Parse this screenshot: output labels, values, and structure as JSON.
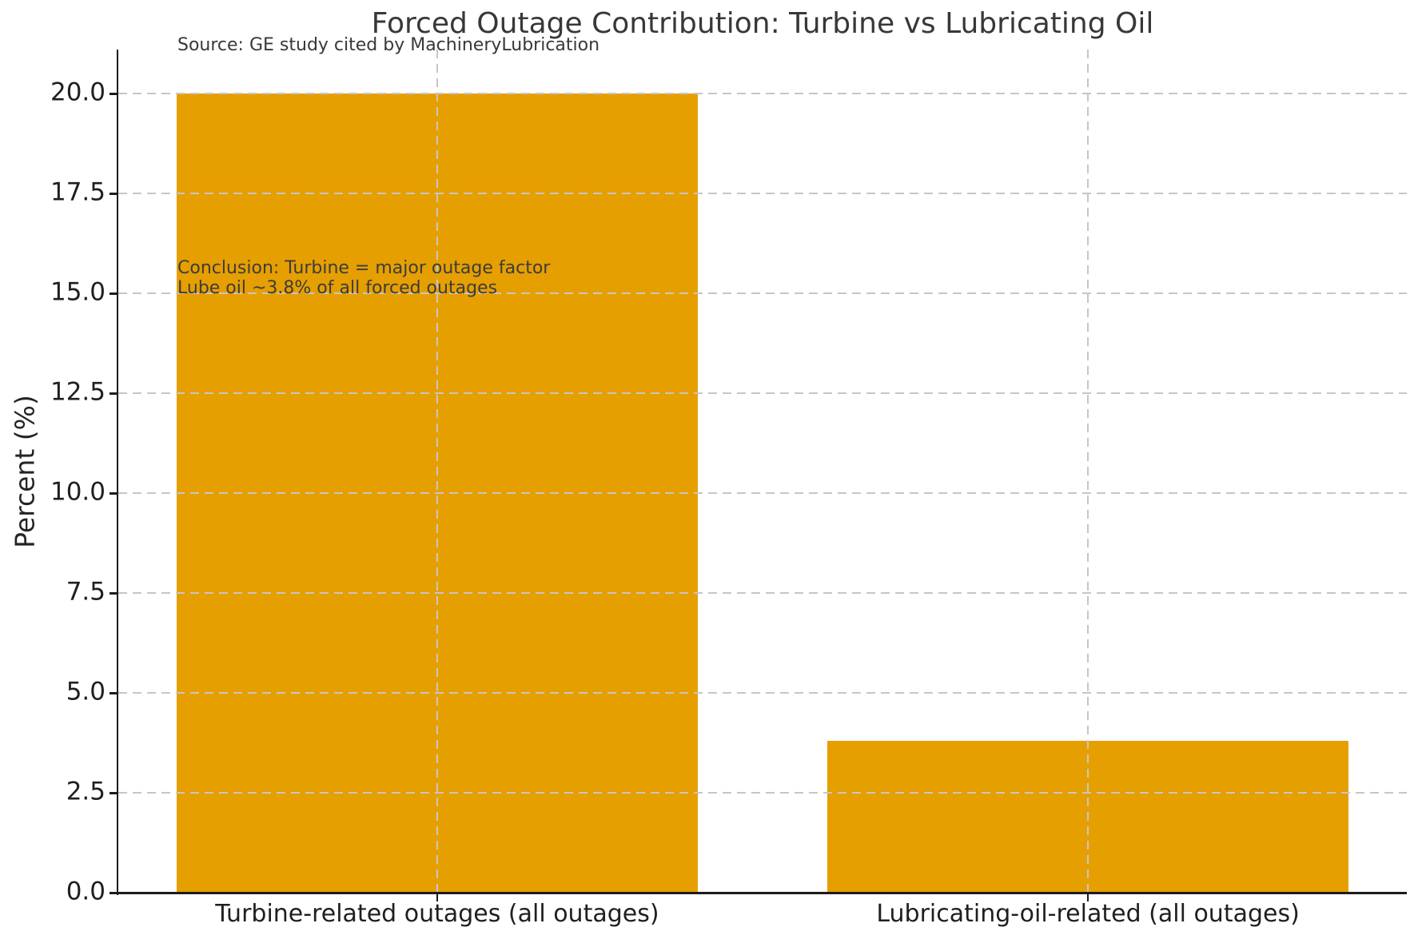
{
  "chart_data": {
    "type": "bar",
    "title": "Forced Outage Contribution: Turbine vs Lubricating Oil",
    "source_note": "Source: GE study cited by MachineryLubrication",
    "ylabel": "Percent (%)",
    "xlabel": "",
    "categories": [
      "Turbine-related outages (all outages)",
      "Lubricating-oil-related (all outages)"
    ],
    "values": [
      20.0,
      3.8
    ],
    "bar_color": "#E69F00",
    "yticks": [
      0,
      2.5,
      5,
      7.5,
      10,
      12.5,
      15,
      17.5,
      20
    ],
    "ytick_labels": [
      "0.0",
      "2.5",
      "5.0",
      "7.5",
      "10.0",
      "12.5",
      "15.0",
      "17.5",
      "20.0"
    ],
    "ylim": [
      0,
      21.1
    ],
    "grid": "dashed gray, horizontal at each y tick and vertical at each bar center, drawn above bars",
    "legend": "none",
    "annotation": {
      "lines": [
        "Conclusion: Turbine = major outage factor",
        "Lube oil ~3.8% of all forced outages"
      ]
    }
  }
}
